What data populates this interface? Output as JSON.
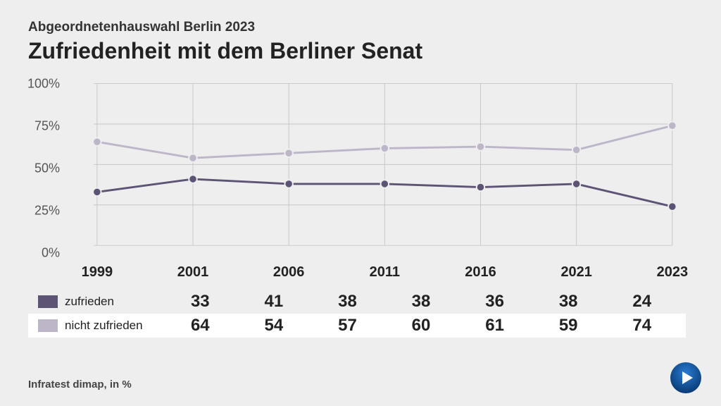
{
  "header": {
    "subtitle": "Abgeordnetenhauswahl Berlin 2023",
    "title": "Zufriedenheit mit dem Berliner Senat"
  },
  "chart": {
    "type": "line",
    "background_color": "#eeeeee",
    "grid_color": "#c7c7c7",
    "axis_text_color": "#555555",
    "categories": [
      "1999",
      "2001",
      "2006",
      "2011",
      "2016",
      "2021",
      "2023"
    ],
    "category_fontsize": 20,
    "ylim": [
      0,
      100
    ],
    "yticks": [
      0,
      25,
      50,
      75,
      100
    ],
    "ytick_suffix": "%",
    "ylabel_fontsize": 18,
    "line_width": 3,
    "marker_radius": 6,
    "marker_style": "circle",
    "series": [
      {
        "key": "zufrieden",
        "label": "zufrieden",
        "color": "#5d5374",
        "values": [
          33,
          41,
          38,
          38,
          36,
          38,
          24
        ]
      },
      {
        "key": "nicht_zufrieden",
        "label": "nicht zufrieden",
        "color": "#bcb6c8",
        "values": [
          64,
          54,
          57,
          60,
          61,
          59,
          74
        ]
      }
    ]
  },
  "table": {
    "row_bg_colors": [
      "#eeeeee",
      "#ffffff"
    ],
    "cell_fontsize": 24,
    "label_fontsize": 17
  },
  "source": "Infratest dimap, in %",
  "logo": {
    "bg_color": "#0b4f9e",
    "shape_color": "#ffffff"
  }
}
